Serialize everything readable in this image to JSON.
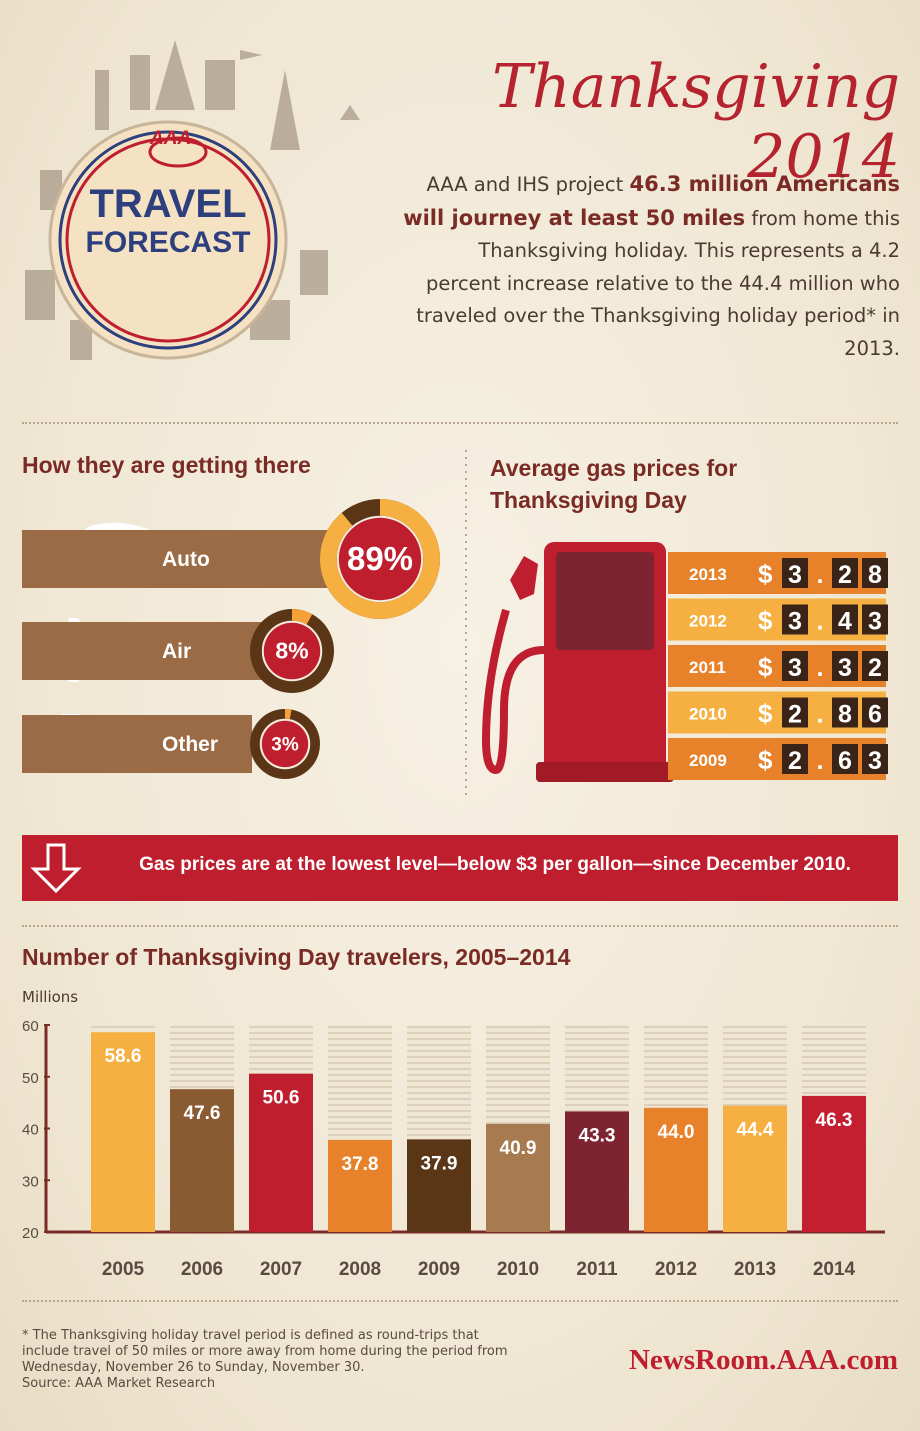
{
  "header": {
    "logo": "AAA",
    "badge_line1": "TRAVEL",
    "badge_line2": "FORECAST",
    "title": "Thanksgiving 2014",
    "intro_before": "AAA and IHS project",
    "intro_bold": "46.3 million Americans will journey at least 50 miles",
    "intro_after": "from home this Thanksgiving holiday. This represents a 4.2 percent increase relative to the 44.4 million who traveled over the Thanksgiving holiday period* in 2013."
  },
  "modes": {
    "title": "How they are getting there",
    "items": [
      {
        "label": "Auto",
        "value": 89,
        "value_label": "89%"
      },
      {
        "label": "Air",
        "value": 8,
        "value_label": "8%"
      },
      {
        "label": "Other",
        "value": 3,
        "value_label": "3%"
      }
    ]
  },
  "gas": {
    "title": "Average gas prices for Thanksgiving Day",
    "currency": "$",
    "rows": [
      {
        "year": "2013",
        "price": 3.28
      },
      {
        "year": "2012",
        "price": 3.43
      },
      {
        "year": "2011",
        "price": 3.32
      },
      {
        "year": "2010",
        "price": 2.86
      },
      {
        "year": "2009",
        "price": 2.63
      }
    ]
  },
  "banner": "Gas prices are at the lowest level—below $3 per gallon—since December 2010.",
  "chart_data": {
    "type": "bar",
    "title": "Number of Thanksgiving Day travelers, 2005–2014",
    "y_label": "Millions",
    "categories": [
      "2005",
      "2006",
      "2007",
      "2008",
      "2009",
      "2010",
      "2011",
      "2012",
      "2013",
      "2014"
    ],
    "values": [
      58.6,
      47.6,
      50.6,
      37.8,
      37.9,
      40.9,
      43.3,
      44.0,
      44.4,
      46.3
    ],
    "value_labels": [
      "58.6",
      "47.6",
      "50.6",
      "37.8",
      "37.9",
      "40.9",
      "43.3",
      "44.0",
      "44.4",
      "46.3"
    ],
    "colors": [
      "#f6b042",
      "#8a5a33",
      "#bf1e2e",
      "#e8822a",
      "#5a3516",
      "#a87a4f",
      "#7d2430",
      "#e8822a",
      "#f6b042",
      "#c41f30"
    ],
    "ylim": [
      20,
      60
    ],
    "yticks": [
      20,
      30,
      40,
      50,
      60
    ]
  },
  "footer": {
    "footnote": "* The Thanksgiving holiday travel period is defined as round-trips that include travel of 50 miles or more away from home during the period from Wednesday, November 26 to Sunday, November 30.",
    "source": "Source: AAA Market Research",
    "site": "NewsRoom.AAA.com"
  }
}
